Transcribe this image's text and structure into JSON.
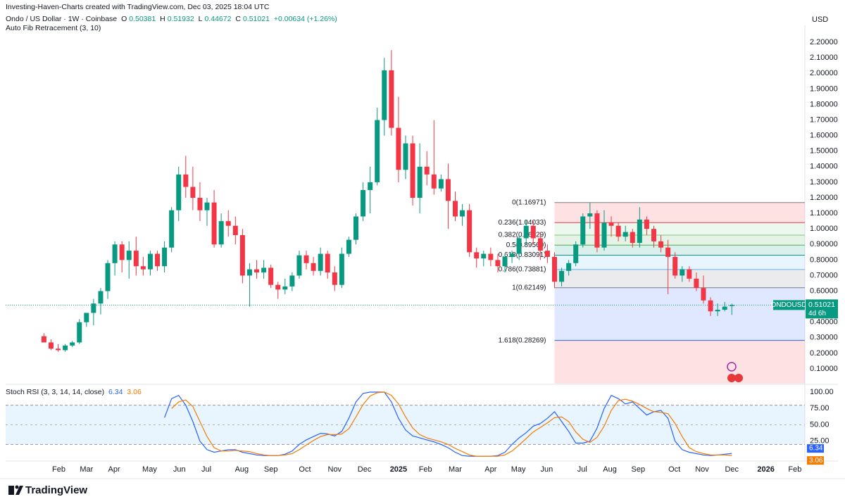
{
  "header": {
    "credit": "Investing-Haven-Charts created with TradingView.com, Dec 03, 2025 18:04 UTC",
    "symbol": "Ondo / US Dollar · 1W · Coinbase",
    "ohlc_labels": [
      "O",
      "H",
      "L",
      "C"
    ],
    "change": "+0.00634 (+1.26%)",
    "indicator": "Auto Fib Retracement (3, 10)",
    "currency": "USD"
  },
  "chart_data": [
    {
      "type": "candlestick",
      "open": [
        0.31,
        0.27,
        0.23,
        0.22,
        0.25,
        0.27,
        0.4,
        0.46,
        0.52,
        0.6,
        0.78,
        0.9,
        0.8,
        0.86,
        0.76,
        0.74,
        0.84,
        0.76,
        0.88,
        1.12,
        1.35,
        1.27,
        1.2,
        1.12,
        1.17,
        0.9,
        1.05,
        1.02,
        0.96,
        0.7,
        0.74,
        0.72,
        0.75,
        0.64,
        0.61,
        0.63,
        0.7,
        0.83,
        0.78,
        0.73,
        0.84,
        0.72,
        0.64,
        0.84,
        0.93,
        1.08,
        1.25,
        1.3,
        1.7,
        2.02,
        1.65,
        1.38,
        1.55,
        1.2,
        1.4,
        1.35,
        1.26,
        1.32,
        1.18,
        1.08,
        1.12,
        0.85,
        0.81,
        0.84,
        0.8,
        0.76,
        0.82,
        0.84,
        0.94,
        1.02,
        0.94,
        0.86,
        0.82,
        0.66,
        0.73,
        0.78,
        0.9,
        1.08,
        1.1,
        0.88,
        1.04,
        1.02,
        0.95,
        0.98,
        0.91,
        1.06,
        1.0,
        0.92,
        0.88,
        0.82,
        0.7,
        0.74,
        0.68,
        0.62,
        0.54,
        0.47,
        0.48,
        0.50381
      ],
      "high": [
        0.33,
        0.29,
        0.26,
        0.26,
        0.28,
        0.42,
        0.46,
        0.55,
        0.62,
        0.8,
        0.92,
        0.92,
        0.92,
        0.95,
        0.82,
        0.86,
        0.86,
        0.92,
        1.14,
        1.4,
        1.47,
        1.4,
        1.3,
        1.2,
        1.25,
        1.1,
        1.12,
        1.08,
        1.0,
        0.78,
        0.8,
        0.8,
        0.77,
        0.66,
        0.68,
        0.72,
        0.86,
        0.86,
        0.82,
        0.88,
        0.86,
        0.76,
        0.88,
        0.95,
        1.1,
        1.3,
        1.4,
        1.78,
        2.1,
        2.15,
        1.85,
        1.6,
        1.6,
        1.55,
        1.5,
        1.7,
        1.35,
        1.42,
        1.24,
        1.16,
        1.16,
        0.88,
        0.86,
        0.88,
        0.84,
        0.84,
        0.86,
        0.96,
        1.06,
        1.05,
        0.98,
        0.9,
        0.85,
        0.75,
        0.8,
        0.92,
        1.1,
        1.17,
        1.12,
        1.12,
        1.08,
        1.04,
        1.02,
        1.0,
        1.14,
        1.08,
        1.02,
        0.96,
        0.93,
        0.85,
        0.76,
        0.76,
        0.72,
        0.7,
        0.56,
        0.52,
        0.53,
        0.51932
      ],
      "low": [
        0.27,
        0.22,
        0.21,
        0.21,
        0.24,
        0.26,
        0.37,
        0.38,
        0.45,
        0.55,
        0.7,
        0.72,
        0.68,
        0.7,
        0.7,
        0.7,
        0.73,
        0.72,
        0.85,
        1.05,
        1.2,
        1.12,
        1.05,
        1.02,
        0.88,
        0.88,
        0.95,
        0.9,
        0.65,
        0.5,
        0.68,
        0.68,
        0.62,
        0.55,
        0.58,
        0.6,
        0.68,
        0.74,
        0.7,
        0.7,
        0.68,
        0.6,
        0.62,
        0.82,
        0.9,
        1.05,
        1.1,
        1.28,
        1.6,
        1.6,
        1.3,
        1.32,
        1.15,
        1.1,
        1.28,
        1.22,
        1.24,
        1.0,
        1.05,
        1.02,
        0.82,
        0.75,
        0.76,
        0.76,
        0.72,
        0.72,
        0.78,
        0.8,
        0.9,
        0.9,
        0.8,
        0.78,
        0.62,
        0.63,
        0.7,
        0.76,
        0.88,
        1.0,
        0.85,
        0.86,
        0.95,
        0.92,
        0.92,
        0.88,
        0.88,
        0.96,
        0.88,
        0.85,
        0.58,
        0.68,
        0.66,
        0.66,
        0.6,
        0.52,
        0.44,
        0.44,
        0.47,
        0.44672
      ],
      "close": [
        0.27,
        0.23,
        0.22,
        0.25,
        0.27,
        0.4,
        0.46,
        0.52,
        0.6,
        0.78,
        0.9,
        0.8,
        0.86,
        0.76,
        0.74,
        0.84,
        0.76,
        0.88,
        1.12,
        1.35,
        1.27,
        1.2,
        1.12,
        1.17,
        0.9,
        1.05,
        1.02,
        0.96,
        0.7,
        0.74,
        0.72,
        0.75,
        0.64,
        0.61,
        0.63,
        0.7,
        0.83,
        0.78,
        0.73,
        0.84,
        0.72,
        0.64,
        0.84,
        0.93,
        1.08,
        1.25,
        1.3,
        1.7,
        2.02,
        1.65,
        1.38,
        1.55,
        1.2,
        1.4,
        1.35,
        1.26,
        1.32,
        1.18,
        1.08,
        1.12,
        0.85,
        0.81,
        0.84,
        0.8,
        0.76,
        0.82,
        0.84,
        0.94,
        1.02,
        0.94,
        0.86,
        0.82,
        0.66,
        0.73,
        0.78,
        0.9,
        1.08,
        1.1,
        0.88,
        1.04,
        1.02,
        0.95,
        0.98,
        0.91,
        1.06,
        1.0,
        0.92,
        0.88,
        0.82,
        0.7,
        0.74,
        0.68,
        0.62,
        0.54,
        0.47,
        0.48,
        0.5,
        0.51021
      ],
      "up_color": "#089981",
      "down_color": "#f23645",
      "xlim": [
        -5.4,
        107.3
      ],
      "xticks": [
        {
          "value": 2.1,
          "label": "Feb"
        },
        {
          "value": 6.0,
          "label": "Mar"
        },
        {
          "value": 9.9,
          "label": "Apr"
        },
        {
          "value": 14.9,
          "label": "May"
        },
        {
          "value": 19.1,
          "label": "Jun"
        },
        {
          "value": 22.9,
          "label": "Jul"
        },
        {
          "value": 27.9,
          "label": "Aug"
        },
        {
          "value": 32.0,
          "label": "Sep"
        },
        {
          "value": 36.8,
          "label": "Oct"
        },
        {
          "value": 41.0,
          "label": "Nov"
        },
        {
          "value": 45.2,
          "label": "Dec"
        },
        {
          "value": 50.0,
          "label": "2025"
        },
        {
          "value": 53.8,
          "label": "Feb"
        },
        {
          "value": 58.0,
          "label": "Mar"
        },
        {
          "value": 63.0,
          "label": "Apr"
        },
        {
          "value": 66.9,
          "label": "May"
        },
        {
          "value": 70.9,
          "label": "Jun"
        },
        {
          "value": 75.9,
          "label": "Jul"
        },
        {
          "value": 79.8,
          "label": "Aug"
        },
        {
          "value": 83.8,
          "label": "Sep"
        },
        {
          "value": 88.9,
          "label": "Oct"
        },
        {
          "value": 92.8,
          "label": "Nov"
        },
        {
          "value": 97.0,
          "label": "Dec"
        },
        {
          "value": 101.8,
          "label": "2026"
        },
        {
          "value": 105.9,
          "label": "Feb"
        }
      ],
      "ylim": [
        0.005,
        2.3
      ],
      "yticks": [
        {
          "value": 0.1,
          "label": "0.10000"
        },
        {
          "value": 0.2,
          "label": "0.20000"
        },
        {
          "value": 0.3,
          "label": "0.30000"
        },
        {
          "value": 0.4,
          "label": "0.40000"
        },
        {
          "value": 0.5,
          "label": "0.50000"
        },
        {
          "value": 0.6,
          "label": "0.60000"
        },
        {
          "value": 0.7,
          "label": "0.70000"
        },
        {
          "value": 0.8,
          "label": "0.80000"
        },
        {
          "value": 0.9,
          "label": "0.90000"
        },
        {
          "value": 1.0,
          "label": "1.00000"
        },
        {
          "value": 1.1,
          "label": "1.10000"
        },
        {
          "value": 1.2,
          "label": "1.20000"
        },
        {
          "value": 1.3,
          "label": "1.30000"
        },
        {
          "value": 1.4,
          "label": "1.40000"
        },
        {
          "value": 1.5,
          "label": "1.50000"
        },
        {
          "value": 1.6,
          "label": "1.60000"
        },
        {
          "value": 1.7,
          "label": "1.70000"
        },
        {
          "value": 1.8,
          "label": "1.80000"
        },
        {
          "value": 1.9,
          "label": "1.90000"
        },
        {
          "value": 2.0,
          "label": "2.00000"
        },
        {
          "value": 2.1,
          "label": "2.10000"
        },
        {
          "value": 2.2,
          "label": "2.20000"
        }
      ],
      "grid": false,
      "price_tag": {
        "symbol": "ONDOUSD",
        "countdown": "4d 6h"
      },
      "fib": {
        "anchor_index": 72,
        "extension_color": "#f23645",
        "levels": [
          {
            "label": "0(1.16971)",
            "price": 1.16971,
            "color": "#787b86"
          },
          {
            "label": "0.236(1.04033)",
            "price": 1.04033,
            "color": "#f23645"
          },
          {
            "label": "0.382(0.96029)",
            "price": 0.96029,
            "color": "#81c784"
          },
          {
            "label": "0.5(0.89560)",
            "price": 0.8956,
            "color": "#4caf50"
          },
          {
            "label": "0.618(0.83091)",
            "price": 0.83091,
            "color": "#089981"
          },
          {
            "label": "0.786(0.73881)",
            "price": 0.73881,
            "color": "#64b5f6"
          },
          {
            "label": "1(0.62149)",
            "price": 0.62149,
            "color": "#787b86"
          },
          {
            "label": "1.618(0.28269)",
            "price": 0.28269,
            "color": "#2962ff"
          }
        ]
      }
    },
    {
      "type": "line",
      "title": "Stoch RSI (3, 3, 14, 14, close)",
      "series": [
        {
          "color": "#2962ff",
          "values": [
            null,
            null,
            null,
            null,
            null,
            null,
            null,
            null,
            null,
            null,
            null,
            null,
            null,
            null,
            null,
            null,
            null,
            61,
            90,
            95,
            80,
            55,
            25,
            12,
            8,
            10,
            12,
            12,
            8,
            6,
            4,
            3,
            3,
            3,
            5,
            10,
            20,
            27,
            32,
            37,
            36,
            33,
            40,
            60,
            85,
            98,
            100,
            100,
            100,
            85,
            60,
            42,
            33,
            30,
            27,
            24,
            20,
            15,
            8,
            3,
            2,
            2,
            2,
            2,
            3,
            8,
            20,
            30,
            38,
            48,
            52,
            60,
            70,
            55,
            40,
            22,
            22,
            25,
            45,
            75,
            95,
            90,
            82,
            85,
            75,
            65,
            70,
            72,
            60,
            25,
            12,
            8,
            6,
            4,
            3,
            4,
            5,
            6.34
          ]
        },
        {
          "color": "#f57c00",
          "values": [
            null,
            null,
            null,
            null,
            null,
            null,
            null,
            null,
            null,
            null,
            null,
            null,
            null,
            null,
            null,
            null,
            null,
            null,
            75,
            85,
            88,
            78,
            55,
            32,
            15,
            10,
            10,
            11,
            10,
            9,
            6,
            4,
            3,
            3,
            4,
            6,
            12,
            19,
            26,
            32,
            35,
            35,
            36,
            44,
            62,
            81,
            94,
            99,
            100,
            95,
            82,
            62,
            45,
            35,
            30,
            27,
            24,
            20,
            14,
            9,
            4,
            2,
            2,
            2,
            2,
            4,
            10,
            19,
            29,
            39,
            46,
            53,
            61,
            62,
            55,
            39,
            28,
            23,
            31,
            48,
            72,
            87,
            89,
            86,
            81,
            75,
            70,
            69,
            67,
            52,
            32,
            15,
            9,
            6,
            4,
            4,
            4,
            3.06
          ]
        }
      ],
      "ylim": [
        -5.4,
        109.7
      ],
      "yticks": [
        {
          "value": 25,
          "label": "25.00"
        },
        {
          "value": 50,
          "label": "50.00"
        },
        {
          "value": 75,
          "label": "75.00"
        },
        {
          "value": 100,
          "label": "100.00"
        }
      ],
      "band": [
        20,
        80
      ],
      "midline": 50
    }
  ],
  "footer": {
    "brand": "TradingView"
  }
}
